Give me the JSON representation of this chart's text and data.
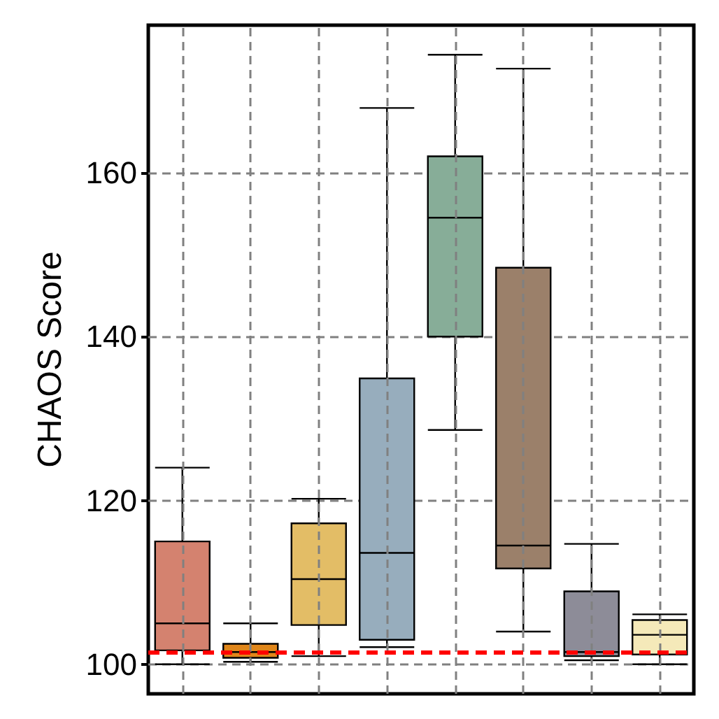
{
  "chart_data": {
    "type": "box",
    "ylabel": "CHAOS Score",
    "categories": [
      null,
      null,
      null,
      null,
      null,
      null,
      null,
      null
    ],
    "boxes": [
      {
        "low": 100,
        "q1": 101.7,
        "median": 105,
        "q3": 115,
        "high": 124
      },
      {
        "low": 100.3,
        "q1": 100.8,
        "median": 101.5,
        "q3": 102.5,
        "high": 105
      },
      {
        "low": 101,
        "q1": 104.8,
        "median": 110.4,
        "q3": 117.2,
        "high": 120.2
      },
      {
        "low": 102.1,
        "q1": 103,
        "median": 113.6,
        "q3": 134.9,
        "high": 167.9
      },
      {
        "low": 128.6,
        "q1": 140,
        "median": 154.5,
        "q3": 162,
        "high": 174.4
      },
      {
        "low": 104,
        "q1": 111.7,
        "median": 114.5,
        "q3": 148.4,
        "high": 172.7
      },
      {
        "low": 100.5,
        "q1": 101,
        "median": 101.5,
        "q3": 108.9,
        "high": 114.7
      },
      {
        "low": 100,
        "q1": 101.2,
        "median": 103.6,
        "q3": 105.4,
        "high": 106.1
      }
    ],
    "colors": [
      "#d4826f",
      "#e0861a",
      "#e3bd66",
      "#97adbd",
      "#87ad98",
      "#9b806a",
      "#8d8c98",
      "#f5e9b9"
    ],
    "ylim": [
      96.4,
      178
    ],
    "yticks": [
      100,
      120,
      140,
      160
    ],
    "ref_lines": [
      {
        "axis": "y",
        "value": 101.5,
        "color": "#ff0000",
        "line_style": "dashed"
      }
    ],
    "grid": true,
    "tick_labels": "y"
  }
}
